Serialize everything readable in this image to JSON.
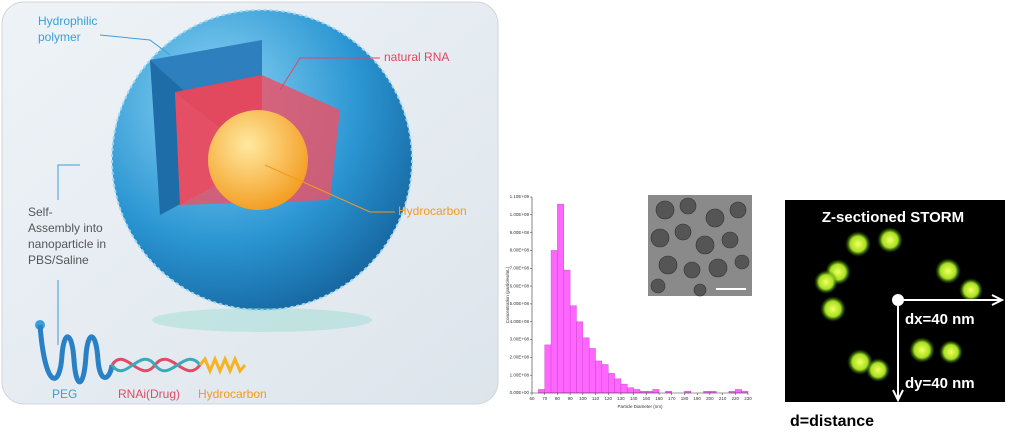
{
  "illustration": {
    "hydrophilic_polymer": [
      "Hydrophilic",
      "polymer"
    ],
    "natural_rna": "natural RNA",
    "core": "Hydrocarbon",
    "self_assembly": [
      "Self-",
      "Assembly into",
      "nanoparticle in",
      "PBS/Saline"
    ],
    "peg": "PEG",
    "rnai": "RNAi(Drug)",
    "tail": "Hydrocarbon"
  },
  "chart_data": {
    "type": "histogram",
    "xlabel": "Particle Diameter (nm)",
    "ylabel": "Concentration (particles/mL)",
    "color": "#ff66ff",
    "bins": [
      65,
      70,
      75,
      80,
      85,
      90,
      95,
      100,
      105,
      110,
      115,
      120,
      125,
      130,
      135,
      140,
      145,
      150,
      155,
      160,
      165,
      170,
      175,
      180,
      185,
      190,
      195,
      200,
      205,
      210,
      215,
      220,
      225,
      230
    ],
    "values": [
      20000000,
      270000000,
      800000000,
      1060000000,
      690000000,
      490000000,
      400000000,
      310000000,
      250000000,
      180000000,
      160000000,
      110000000,
      80000000,
      50000000,
      30000000,
      20000000,
      10000000,
      10000000,
      20000000,
      0,
      10000000,
      0,
      0,
      10000000,
      0,
      0,
      10000000,
      10000000,
      0,
      0,
      10000000,
      20000000,
      10000000
    ],
    "xlim": [
      60,
      230
    ],
    "xticks": [
      60,
      70,
      80,
      90,
      100,
      110,
      120,
      130,
      140,
      150,
      160,
      170,
      180,
      190,
      200,
      210,
      220,
      230
    ],
    "ylim": [
      0,
      1100000000
    ],
    "yticks": [
      {
        "value": 0,
        "label": "0.00E+00"
      },
      {
        "value": 100000000,
        "label": "1.00E+08"
      },
      {
        "value": 200000000,
        "label": "2.00E+08"
      },
      {
        "value": 300000000,
        "label": "3.00E+08"
      },
      {
        "value": 400000000,
        "label": "4.00E+08"
      },
      {
        "value": 500000000,
        "label": "5.00E+08"
      },
      {
        "value": 600000000,
        "label": "6.00E+08"
      },
      {
        "value": 700000000,
        "label": "7.00E+08"
      },
      {
        "value": 800000000,
        "label": "8.00E+08"
      },
      {
        "value": 900000000,
        "label": "9.00E+08"
      },
      {
        "value": 1000000000,
        "label": "1.00E+09"
      },
      {
        "value": 1100000000,
        "label": "1.10E+09"
      }
    ],
    "grid": false
  },
  "storm": {
    "title": "Z-sectioned STORM",
    "dx": "dx=40 nm",
    "dy": "dy=40 nm",
    "caption": "d=distance"
  }
}
